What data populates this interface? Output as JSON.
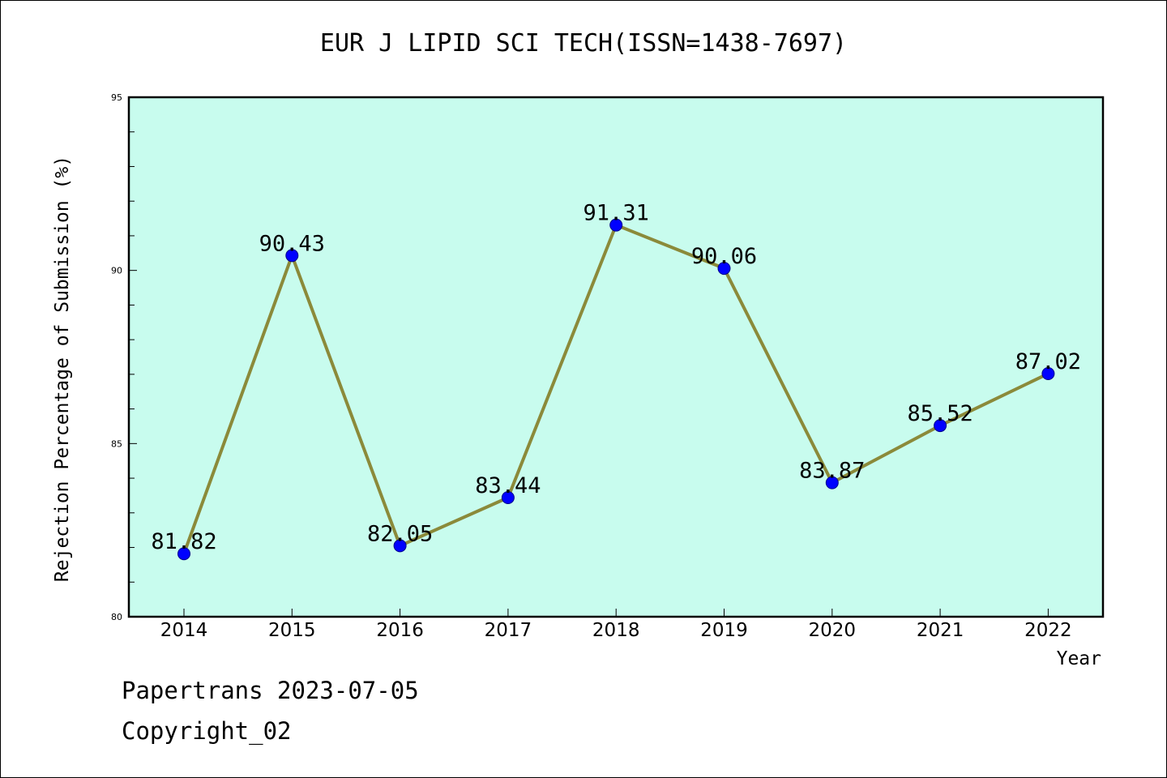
{
  "chart_data": {
    "type": "line",
    "title": "EUR J LIPID SCI TECH(ISSN=1438-7697)",
    "xlabel": "Year",
    "ylabel": "Rejection Percentage of Submission (%)",
    "categories": [
      "2014",
      "2015",
      "2016",
      "2017",
      "2018",
      "2019",
      "2020",
      "2021",
      "2022"
    ],
    "series": [
      {
        "values": [
          81.82,
          90.43,
          82.05,
          83.44,
          91.31,
          90.06,
          83.87,
          85.52,
          87.02
        ],
        "labels": [
          "81.82",
          "90.43",
          "82.05",
          "83.44",
          "91.31",
          "90.06",
          "83.87",
          "85.52",
          "87.02"
        ]
      }
    ],
    "ylim": [
      80,
      95
    ],
    "yticks": [
      "80",
      "85",
      "90",
      "95"
    ],
    "grid": false,
    "legend": "none"
  },
  "footer": {
    "line1": "Papertrans 2023-07-05",
    "line2": "Copyright_02"
  },
  "colors": {
    "plot_background": "#c8fcee",
    "line": "#8b8a3a",
    "marker": "#0000ff"
  }
}
